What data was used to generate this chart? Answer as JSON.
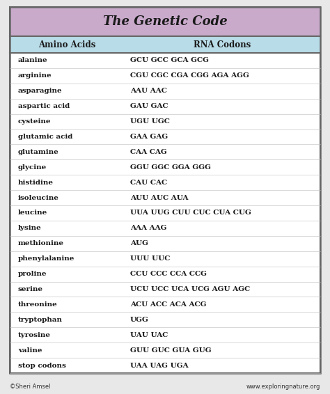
{
  "title": "The Genetic Code",
  "header_col1": "Amino Acids",
  "header_col2": "RNA Codons",
  "rows": [
    [
      "alanine",
      "GCU GCC GCA GCG"
    ],
    [
      "arginine",
      "CGU CGC CGA CGG AGA AGG"
    ],
    [
      "asparagine",
      "AAU AAC"
    ],
    [
      "aspartic acid",
      "GAU GAC"
    ],
    [
      "cysteine",
      "UGU UGC"
    ],
    [
      "glutamic acid",
      "GAA GAG"
    ],
    [
      "glutamine",
      "CAA CAG"
    ],
    [
      "glycine",
      "GGU GGC GGA GGG"
    ],
    [
      "histidine",
      "CAU CAC"
    ],
    [
      "isoleucine",
      "AUU AUC AUA"
    ],
    [
      "leucine",
      "UUA UUG CUU CUC CUA CUG"
    ],
    [
      "lysine",
      "AAA AAG"
    ],
    [
      "methionine",
      "AUG"
    ],
    [
      "phenylalanine",
      "UUU UUC"
    ],
    [
      "proline",
      "CCU CCC CCA CCG"
    ],
    [
      "serine",
      "UCU UCC UCA UCG AGU AGC"
    ],
    [
      "threonine",
      "ACU ACC ACA ACG"
    ],
    [
      "tryptophan",
      "UGG"
    ],
    [
      "tyrosine",
      "UAU UAC"
    ],
    [
      "valine",
      "GUU GUC GUA GUG"
    ],
    [
      "stop codons",
      "UAA UAG UGA"
    ]
  ],
  "title_bg": "#c9aacb",
  "header_bg": "#b8dce8",
  "table_bg": "#ffffff",
  "border_color": "#666666",
  "row_line_color": "#bbbbbb",
  "text_color": "#1a1a1a",
  "footer_left": "©Sheri Amsel",
  "footer_right": "www.exploringnature.org",
  "bg_color": "#e8e8e8",
  "title_fontsize": 13,
  "header_fontsize": 8.5,
  "row_fontsize": 7.5,
  "footer_fontsize": 6,
  "col_split": 0.37
}
